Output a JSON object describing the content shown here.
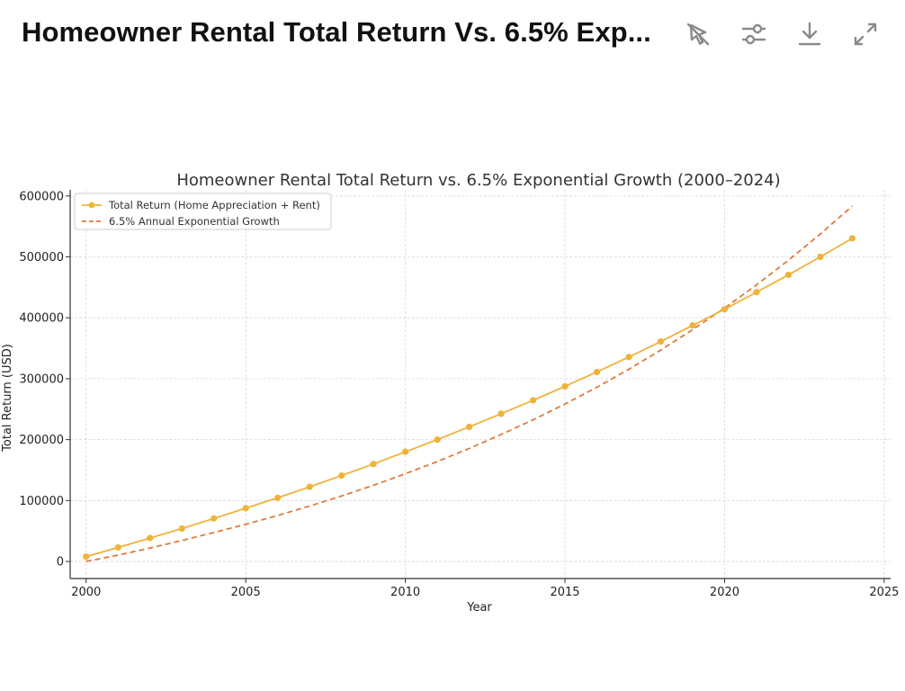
{
  "header": {
    "title": "Homeowner Rental Total Return Vs. 6.5% Exp...",
    "icons": [
      "cursor-off-icon",
      "sliders-icon",
      "download-icon",
      "expand-icon"
    ]
  },
  "colors": {
    "total_return": "#f0b23b",
    "exponential": "#e07a3f",
    "axis": "#333333",
    "grid": "#d9d9d9"
  },
  "chart_data": {
    "type": "line",
    "title": "Homeowner Rental Total Return vs. 6.5% Exponential Growth (2000–2024)",
    "xlabel": "Year",
    "ylabel": "Total Return (USD)",
    "xlim": [
      1999.5,
      2025.2
    ],
    "ylim": [
      -28000,
      610000
    ],
    "x_ticks": [
      2000,
      2005,
      2010,
      2015,
      2020,
      2025
    ],
    "y_ticks": [
      0,
      100000,
      200000,
      300000,
      400000,
      500000,
      600000
    ],
    "grid": true,
    "legend_position": "top-left",
    "x": [
      2000,
      2001,
      2002,
      2003,
      2004,
      2005,
      2006,
      2007,
      2008,
      2009,
      2010,
      2011,
      2012,
      2013,
      2014,
      2015,
      2016,
      2017,
      2018,
      2019,
      2020,
      2021,
      2022,
      2023,
      2024
    ],
    "series": [
      {
        "name": "Total Return (Home Appreciation + Rent)",
        "style": "solid-markers",
        "values": [
          8000,
          23000,
          38500,
          54000,
          70500,
          87500,
          104500,
          122500,
          141000,
          160000,
          180000,
          200000,
          221000,
          242500,
          264500,
          287500,
          311000,
          335500,
          361000,
          387500,
          414000,
          442000,
          470500,
          500000,
          530500
        ]
      },
      {
        "name": "6.5% Annual Exponential Growth",
        "style": "dashed",
        "x": [
          2000,
          2001,
          2002,
          2003,
          2004,
          2005,
          2006,
          2007,
          2008,
          2009,
          2010,
          2011,
          2012,
          2013,
          2014,
          2015,
          2016,
          2017,
          2018,
          2019,
          2020,
          2021,
          2022,
          2023,
          2024
        ],
        "values": [
          0,
          10500,
          22000,
          34500,
          47500,
          61000,
          75500,
          91000,
          107500,
          125000,
          144000,
          164000,
          185500,
          208500,
          232500,
          258500,
          286000,
          315500,
          347000,
          380500,
          416000,
          454000,
          494500,
          537500,
          583500
        ]
      }
    ]
  }
}
